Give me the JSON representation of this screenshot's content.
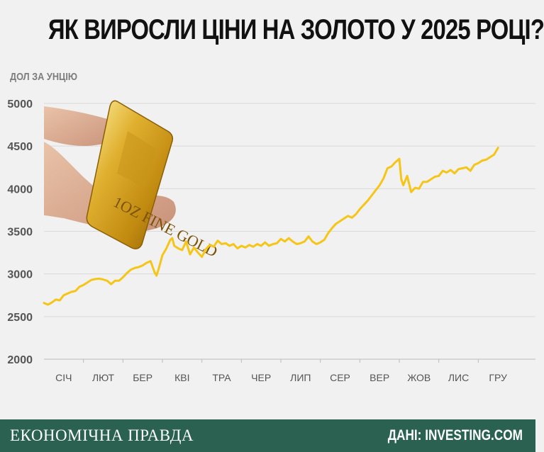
{
  "header": {
    "title": "ЯК ВИРОСЛИ ЦІНИ НА ЗОЛОТО У 2025 РОЦІ?"
  },
  "footer": {
    "brand": "ЕКОНОМІЧНА ПРАВДА",
    "source": "ДАНІ: INVESTING.COM"
  },
  "colors": {
    "line": "#f5c518",
    "grid": "#d9d9d9",
    "footer_bg": "#2b6150",
    "background": "#f1f1f1"
  },
  "image": {
    "subject": "hand-holding-gold-bar",
    "bar_inscription": "1OZ FINE GOLD"
  },
  "chart_data": {
    "type": "line",
    "title": "ЯК ВИРОСЛИ ЦІНИ НА ЗОЛОТО У 2025 РОЦІ?",
    "ylabel": "ДОЛ ЗА УНЦІЮ",
    "xlabel": "",
    "ylim": [
      2000,
      5000
    ],
    "yticks": [
      "2000",
      "2500",
      "3000",
      "3500",
      "4000",
      "4500",
      "5000"
    ],
    "ytick_values": [
      2000,
      2500,
      3000,
      3500,
      4000,
      4500,
      5000
    ],
    "categories": [
      "СІЧ",
      "ЛЮТ",
      "БЕР",
      "КВІ",
      "ТРА",
      "ЧЕР",
      "ЛИП",
      "СЕР",
      "ВЕР",
      "ЖОВ",
      "ЛИС",
      "ГРУ"
    ],
    "grid": true,
    "x": [
      0.0,
      0.1,
      0.2,
      0.3,
      0.4,
      0.5,
      0.6,
      0.7,
      0.8,
      0.9,
      1.0,
      1.1,
      1.2,
      1.3,
      1.4,
      1.5,
      1.6,
      1.7,
      1.8,
      1.9,
      2.0,
      2.1,
      2.2,
      2.3,
      2.4,
      2.5,
      2.6,
      2.7,
      2.8,
      2.85,
      2.9,
      3.0,
      3.1,
      3.2,
      3.25,
      3.3,
      3.4,
      3.5,
      3.6,
      3.7,
      3.8,
      3.9,
      4.0,
      4.1,
      4.2,
      4.3,
      4.4,
      4.5,
      4.6,
      4.7,
      4.8,
      4.9,
      5.0,
      5.1,
      5.2,
      5.3,
      5.4,
      5.5,
      5.6,
      5.7,
      5.8,
      5.9,
      6.0,
      6.1,
      6.2,
      6.3,
      6.4,
      6.5,
      6.6,
      6.7,
      6.8,
      6.9,
      7.0,
      7.1,
      7.2,
      7.3,
      7.4,
      7.5,
      7.6,
      7.7,
      7.8,
      7.9,
      8.0,
      8.1,
      8.2,
      8.3,
      8.4,
      8.5,
      8.6,
      8.7,
      8.8,
      8.9,
      9.0,
      9.05,
      9.1,
      9.2,
      9.3,
      9.4,
      9.5,
      9.6,
      9.7,
      9.8,
      9.9,
      10.0,
      10.1,
      10.2,
      10.3,
      10.4,
      10.5,
      10.6,
      10.7,
      10.8,
      10.9,
      11.0,
      11.1,
      11.2,
      11.3,
      11.4,
      11.5
    ],
    "values": [
      2660,
      2640,
      2665,
      2700,
      2690,
      2750,
      2770,
      2790,
      2800,
      2850,
      2870,
      2900,
      2930,
      2940,
      2945,
      2935,
      2920,
      2880,
      2920,
      2920,
      2960,
      3010,
      3050,
      3070,
      3080,
      3100,
      3130,
      3150,
      3020,
      2980,
      3050,
      3220,
      3300,
      3400,
      3420,
      3330,
      3300,
      3280,
      3380,
      3230,
      3310,
      3250,
      3200,
      3290,
      3340,
      3320,
      3390,
      3350,
      3360,
      3330,
      3350,
      3300,
      3330,
      3310,
      3340,
      3320,
      3350,
      3330,
      3370,
      3330,
      3350,
      3360,
      3410,
      3380,
      3420,
      3380,
      3350,
      3360,
      3380,
      3440,
      3380,
      3350,
      3370,
      3400,
      3480,
      3540,
      3590,
      3620,
      3650,
      3680,
      3660,
      3700,
      3760,
      3810,
      3860,
      3920,
      3980,
      4040,
      4120,
      4240,
      4260,
      4310,
      4350,
      4110,
      4040,
      4150,
      3960,
      4010,
      4000,
      4080,
      4080,
      4110,
      4140,
      4150,
      4210,
      4190,
      4220,
      4180,
      4230,
      4240,
      4250,
      4210,
      4280,
      4300,
      4330,
      4340,
      4370,
      4400,
      4480
    ]
  }
}
